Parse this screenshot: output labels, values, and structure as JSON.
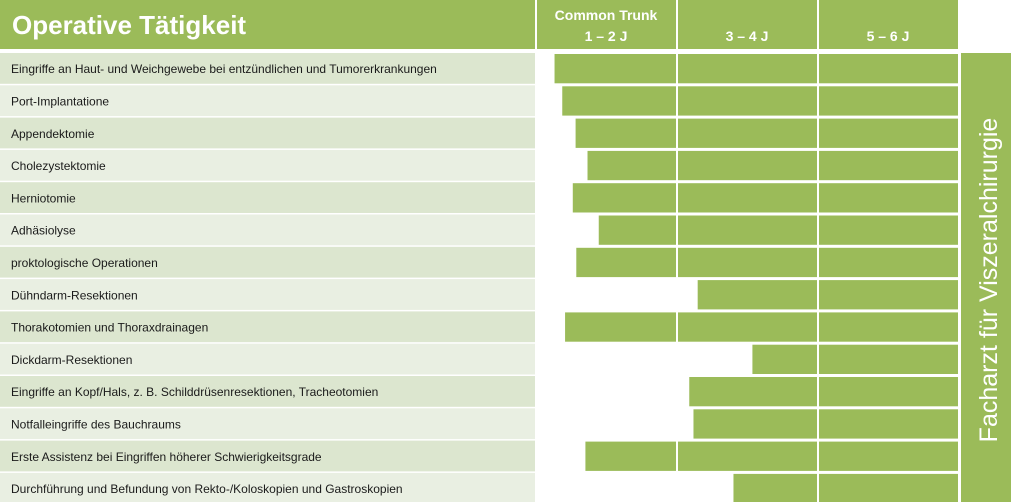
{
  "title": "Operative Tätigkeit",
  "side_label": "Facharzt für Viszeralchirurgie",
  "colors": {
    "header": "#9bbb59",
    "bar": "#9bbb59",
    "row_label_bg": "#dce6cf",
    "row_label_bg_alt": "#e9efe2",
    "text": "#1a1a1a",
    "background": "#ffffff"
  },
  "chart_data": {
    "type": "bar",
    "orientation": "horizontal-timeline",
    "unit": "years of training",
    "periods": [
      {
        "line1": "Common Trunk",
        "line2": "1 – 2 J"
      },
      {
        "line1": "",
        "line2": "3 – 4 J"
      },
      {
        "line1": "",
        "line2": "5 – 6 J"
      }
    ],
    "xlim": [
      0,
      6
    ],
    "categories": [
      "Eingriffe an Haut- und Weichgewebe bei entzündlichen und Tumorerkrankungen",
      "Port-Implantatione",
      "Appendektomie",
      "Cholezystektomie",
      "Herniotomie",
      "Adhäsiolyse",
      "proktologische Operationen",
      "Dühndarm-Resektionen",
      "Thorakotomien und Thoraxdrainagen",
      "Dickdarm-Resektionen",
      "Eingriffe an Kopf/Hals, z. B. Schilddrüsenresektionen, Tracheotomien",
      "Notfalleingriffe des Bauchraums",
      "Erste Assistenz bei Eingriffen höherer Schwierigkeitsgrade",
      "Durchführung und Befundung von Rekto-/Koloskopien und Gastroskopien"
    ],
    "start_values": [
      0.25,
      0.36,
      0.55,
      0.72,
      0.51,
      0.88,
      0.56,
      2.29,
      0.4,
      3.07,
      2.17,
      2.23,
      0.69,
      2.8
    ],
    "end_values": [
      6,
      6,
      6,
      6,
      6,
      6,
      6,
      6,
      6,
      6,
      6,
      6,
      6,
      6
    ]
  }
}
